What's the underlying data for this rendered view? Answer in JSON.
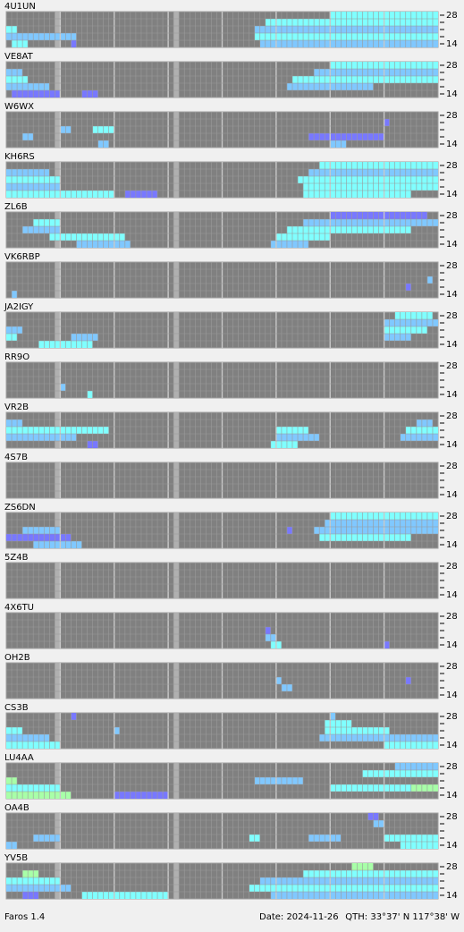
{
  "band_top": "28",
  "band_bottom": "14",
  "columns": 80,
  "rows": 5,
  "level_colors": [
    "#7878ff",
    "#80c8ff",
    "#80ffff",
    "#a8ffa8"
  ],
  "stations": [
    {
      "call": "4U1UN",
      "cells": [
        [
          0,
          60,
          80,
          3
        ],
        [
          1,
          48,
          80,
          3
        ],
        [
          2,
          46,
          80,
          2
        ],
        [
          3,
          46,
          80,
          3
        ],
        [
          4,
          47,
          80,
          2
        ],
        [
          2,
          0,
          2,
          3
        ],
        [
          3,
          0,
          13,
          2
        ],
        [
          4,
          1,
          4,
          3
        ],
        [
          4,
          12,
          13,
          1
        ]
      ]
    },
    {
      "call": "VE8AT",
      "cells": [
        [
          0,
          60,
          80,
          3
        ],
        [
          1,
          57,
          80,
          2
        ],
        [
          2,
          53,
          80,
          3
        ],
        [
          3,
          52,
          68,
          2
        ],
        [
          1,
          0,
          3,
          2
        ],
        [
          2,
          0,
          4,
          3
        ],
        [
          3,
          0,
          8,
          2
        ],
        [
          4,
          1,
          10,
          1
        ],
        [
          4,
          14,
          17,
          1
        ]
      ]
    },
    {
      "call": "W6WX",
      "cells": [
        [
          1,
          70,
          71,
          1
        ],
        [
          2,
          10,
          12,
          2
        ],
        [
          3,
          56,
          70,
          1
        ],
        [
          4,
          60,
          63,
          2
        ],
        [
          3,
          3,
          5,
          2
        ],
        [
          4,
          17,
          19,
          2
        ],
        [
          2,
          16,
          20,
          3
        ]
      ]
    },
    {
      "call": "KH6RS",
      "cells": [
        [
          0,
          58,
          80,
          3
        ],
        [
          1,
          56,
          80,
          2
        ],
        [
          2,
          54,
          80,
          3
        ],
        [
          3,
          55,
          80,
          3
        ],
        [
          4,
          55,
          75,
          3
        ],
        [
          1,
          0,
          8,
          2
        ],
        [
          2,
          0,
          10,
          3
        ],
        [
          3,
          0,
          10,
          2
        ],
        [
          4,
          0,
          20,
          3
        ],
        [
          4,
          22,
          28,
          1
        ]
      ]
    },
    {
      "call": "ZL6B",
      "cells": [
        [
          0,
          60,
          78,
          1
        ],
        [
          1,
          55,
          80,
          2
        ],
        [
          2,
          52,
          75,
          3
        ],
        [
          3,
          50,
          60,
          3
        ],
        [
          4,
          49,
          56,
          2
        ],
        [
          1,
          5,
          10,
          3
        ],
        [
          2,
          3,
          10,
          2
        ],
        [
          3,
          8,
          22,
          3
        ],
        [
          4,
          13,
          23,
          2
        ]
      ]
    },
    {
      "call": "VK6RBP",
      "cells": [
        [
          4,
          1,
          2,
          2
        ],
        [
          3,
          74,
          75,
          1
        ],
        [
          2,
          78,
          79,
          2
        ]
      ]
    },
    {
      "call": "JA2IGY",
      "cells": [
        [
          0,
          72,
          79,
          3
        ],
        [
          1,
          70,
          80,
          2
        ],
        [
          2,
          70,
          78,
          3
        ],
        [
          3,
          70,
          75,
          2
        ],
        [
          2,
          0,
          3,
          2
        ],
        [
          3,
          0,
          2,
          3
        ],
        [
          4,
          6,
          16,
          3
        ],
        [
          3,
          12,
          17,
          2
        ]
      ]
    },
    {
      "call": "RR9O",
      "cells": [
        [
          3,
          10,
          11,
          2
        ],
        [
          4,
          15,
          16,
          3
        ]
      ]
    },
    {
      "call": "VR2B",
      "cells": [
        [
          1,
          0,
          3,
          2
        ],
        [
          2,
          0,
          19,
          3
        ],
        [
          3,
          0,
          13,
          2
        ],
        [
          4,
          15,
          17,
          1
        ],
        [
          2,
          50,
          56,
          3
        ],
        [
          3,
          50,
          58,
          2
        ],
        [
          4,
          49,
          54,
          3
        ],
        [
          1,
          76,
          79,
          2
        ],
        [
          2,
          74,
          80,
          3
        ],
        [
          3,
          73,
          80,
          2
        ]
      ]
    },
    {
      "call": "4S7B",
      "cells": []
    },
    {
      "call": "ZS6DN",
      "cells": [
        [
          0,
          60,
          80,
          3
        ],
        [
          1,
          59,
          80,
          2
        ],
        [
          2,
          57,
          80,
          2
        ],
        [
          3,
          58,
          75,
          3
        ],
        [
          2,
          52,
          53,
          1
        ],
        [
          2,
          3,
          10,
          2
        ],
        [
          3,
          0,
          12,
          1
        ],
        [
          4,
          5,
          14,
          2
        ]
      ]
    },
    {
      "call": "5Z4B",
      "cells": []
    },
    {
      "call": "4X6TU",
      "cells": [
        [
          2,
          48,
          49,
          1
        ],
        [
          3,
          48,
          50,
          2
        ],
        [
          4,
          49,
          51,
          3
        ],
        [
          4,
          70,
          71,
          1
        ]
      ]
    },
    {
      "call": "OH2B",
      "cells": [
        [
          2,
          50,
          51,
          2
        ],
        [
          3,
          51,
          53,
          2
        ],
        [
          2,
          74,
          75,
          1
        ]
      ]
    },
    {
      "call": "CS3B",
      "cells": [
        [
          0,
          60,
          61,
          2
        ],
        [
          1,
          59,
          64,
          3
        ],
        [
          2,
          59,
          71,
          3
        ],
        [
          3,
          58,
          80,
          2
        ],
        [
          4,
          70,
          80,
          3
        ],
        [
          0,
          12,
          13,
          1
        ],
        [
          2,
          0,
          3,
          3
        ],
        [
          3,
          0,
          8,
          2
        ],
        [
          4,
          0,
          10,
          3
        ],
        [
          2,
          20,
          21,
          2
        ]
      ]
    },
    {
      "call": "LU4AA",
      "cells": [
        [
          0,
          72,
          80,
          2
        ],
        [
          1,
          66,
          80,
          3
        ],
        [
          2,
          0,
          2,
          4
        ],
        [
          3,
          0,
          10,
          3
        ],
        [
          4,
          0,
          12,
          4
        ],
        [
          2,
          46,
          55,
          2
        ],
        [
          3,
          60,
          80,
          3
        ],
        [
          4,
          20,
          30,
          1
        ],
        [
          3,
          75,
          80,
          4
        ]
      ]
    },
    {
      "call": "OA4B",
      "cells": [
        [
          0,
          67,
          69,
          1
        ],
        [
          1,
          68,
          70,
          2
        ],
        [
          3,
          70,
          80,
          3
        ],
        [
          4,
          0,
          2,
          2
        ],
        [
          3,
          5,
          10,
          2
        ],
        [
          3,
          45,
          47,
          3
        ],
        [
          3,
          56,
          62,
          2
        ],
        [
          4,
          73,
          80,
          3
        ]
      ]
    },
    {
      "call": "YV5B",
      "cells": [
        [
          0,
          64,
          68,
          4
        ],
        [
          1,
          55,
          80,
          3
        ],
        [
          2,
          47,
          80,
          2
        ],
        [
          3,
          45,
          80,
          3
        ],
        [
          4,
          49,
          80,
          2
        ],
        [
          2,
          0,
          10,
          3
        ],
        [
          3,
          0,
          12,
          2
        ],
        [
          4,
          3,
          6,
          1
        ],
        [
          4,
          14,
          30,
          3
        ],
        [
          1,
          3,
          6,
          4
        ]
      ]
    }
  ],
  "footer": {
    "app": "Faros 1.4",
    "date": "Date: 2024-11-26",
    "qth": "QTH: 33°37' N  117°38' W"
  }
}
